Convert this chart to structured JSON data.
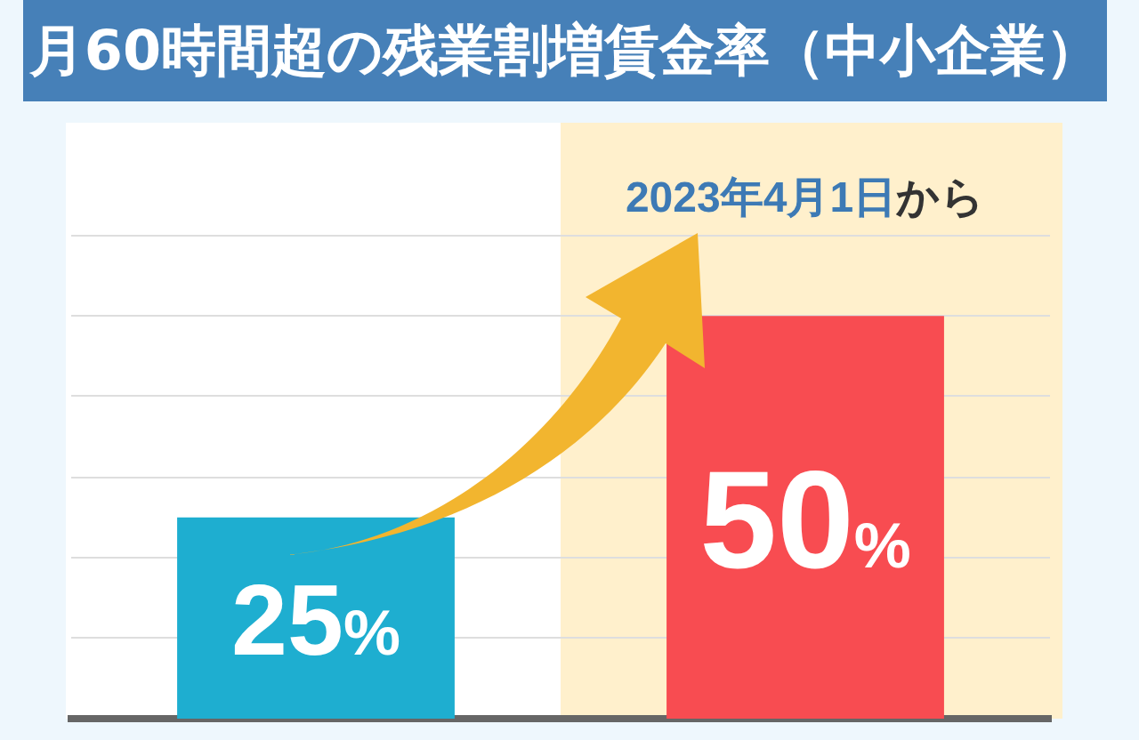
{
  "chart_data": {
    "type": "bar",
    "title": "月60時間超の残業割増賃金率（中小企業）",
    "categories": [
      null,
      null
    ],
    "values": [
      25,
      50
    ],
    "colors": [
      "#1eaed0",
      "#f84c51"
    ],
    "value_labels": [
      "25%",
      "50%"
    ],
    "ylim": [
      0,
      74
    ],
    "yticks": [
      {
        "value": 10,
        "label": null
      },
      {
        "value": 20,
        "label": null
      },
      {
        "value": 30,
        "label": null
      },
      {
        "value": 40,
        "label": null
      },
      {
        "value": 50,
        "label": null
      },
      {
        "value": 60,
        "label": null
      }
    ],
    "grid": "y",
    "tick_labels": false,
    "annotations": [
      "2023年4月1日から"
    ]
  }
}
